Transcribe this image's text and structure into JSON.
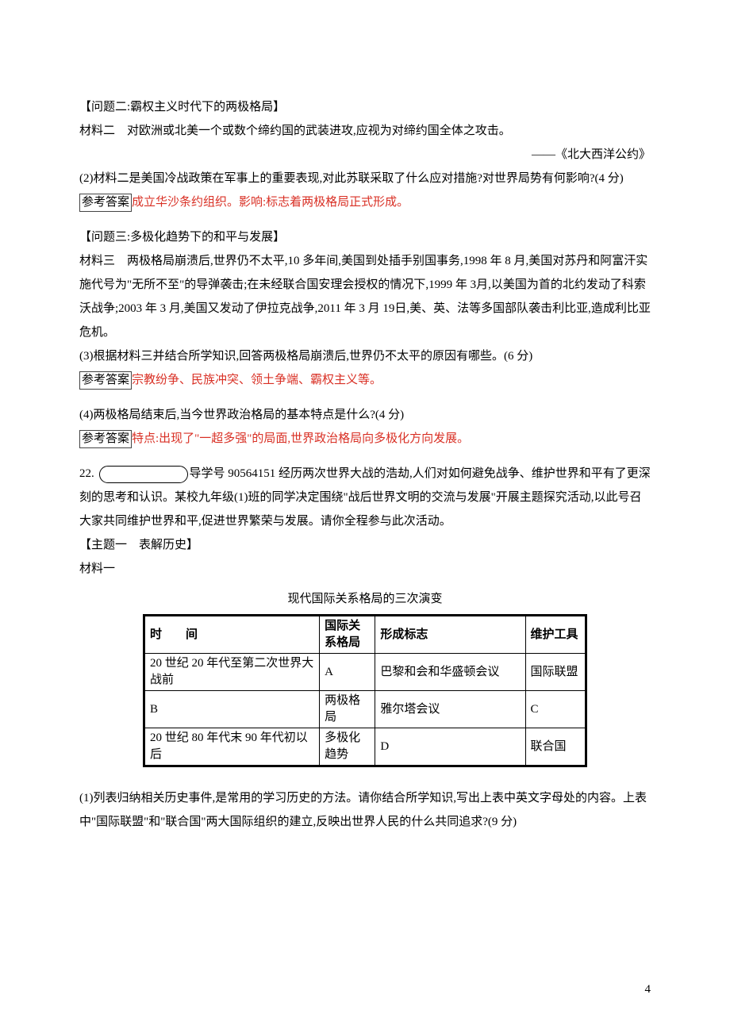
{
  "section1": {
    "heading": "【问题二:霸权主义时代下的两极格局】",
    "mat_label": "材料二　对欧洲或北美一个或数个缔约国的武装进攻,应视为对缔约国全体之攻击。",
    "source": "——《北大西洋公约》",
    "q2": "(2)材料二是美国冷战政策在军事上的重要表现,对此苏联采取了什么应对措施?对世界局势有何影响?(4 分)",
    "ans_tag": "参考答案",
    "ans": "成立华沙条约组织。影响:标志着两极格局正式形成。"
  },
  "section2": {
    "heading": "【问题三:多极化趋势下的和平与发展】",
    "mat_label": "材料三　两极格局崩溃后,世界仍不太平,10 多年间,美国到处插手别国事务,1998 年 8 月,美国对苏丹和阿富汗实施代号为\"无所不至\"的导弹袭击;在未经联合国安理会授权的情况下,1999 年 3月,以美国为首的北约发动了科索沃战争;2003 年 3 月,美国又发动了伊拉克战争,2011 年 3 月 19日,美、英、法等多国部队袭击利比亚,造成利比亚危机。",
    "q3": "(3)根据材料三并结合所学知识,回答两极格局崩溃后,世界仍不太平的原因有哪些。(6 分)",
    "ans_tag": "参考答案",
    "ans3": "宗教纷争、民族冲突、领土争端、霸权主义等。",
    "q4": "(4)两极格局结束后,当今世界政治格局的基本特点是什么?(4 分)",
    "ans4": "特点:出现了\"一超多强\"的局面,世界政治格局向多极化方向发展。"
  },
  "q22": {
    "num": "22.",
    "lead": "导学号 90564151 经历两次世界大战的浩劫,人们对如何避免战争、维护世界和平有了更深刻的思考和认识。某校九年级(1)班的同学决定围绕\"战后世界文明的交流与发展\"开展主题探究活动,以此号召大家共同维护世界和平,促进世界繁荣与发展。请你全程参与此次活动。",
    "theme1": "【主题一　表解历史】",
    "mat1": "材料一",
    "table_caption": "现代国际关系格局的三次演变"
  },
  "table": {
    "headers": {
      "c1": "时　　间",
      "c2": "国际关系格局",
      "c3": "形成标志",
      "c4": "维护工具"
    },
    "rows": [
      {
        "c1": "20 世纪 20 年代至第二次世界大战前",
        "c2": "A",
        "c3": "巴黎和会和华盛顿会议",
        "c4": "国际联盟"
      },
      {
        "c1": "B",
        "c2": "两极格局",
        "c3": "雅尔塔会议",
        "c4": "C"
      },
      {
        "c1": "20 世纪 80 年代末 90 年代初以后",
        "c2": "多极化趋势",
        "c3": "D",
        "c4": "联合国"
      }
    ]
  },
  "q22b": {
    "q1": "(1)列表归纳相关历史事件,是常用的学习历史的方法。请你结合所学知识,写出上表中英文字母处的内容。上表中\"国际联盟\"和\"联合国\"两大国际组织的建立,反映出世界人民的什么共同追求?(9 分)"
  },
  "page_number": "4"
}
